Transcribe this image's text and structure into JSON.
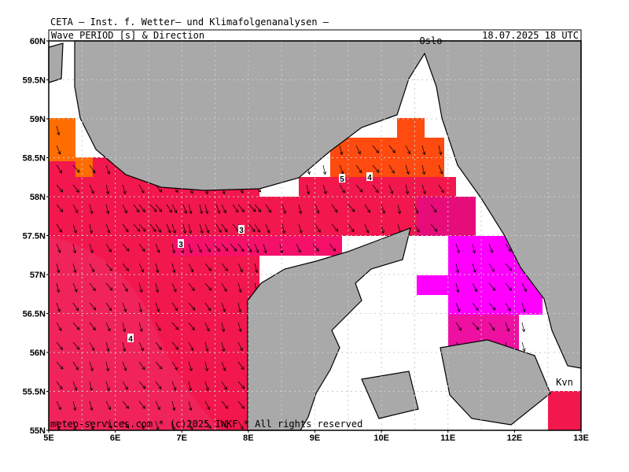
{
  "header": {
    "institute": "CETA – Inst. f. Wetter– und Klimafolgenanalysen –",
    "title": "Wave PERIOD [s] & Direction",
    "valid": "18.07.2025 18 UTC"
  },
  "map": {
    "lat_labels": [
      "60N",
      "59.5N",
      "59N",
      "58.5N",
      "58N",
      "57.5N",
      "57N",
      "56.5N",
      "56N",
      "55.5N",
      "55N"
    ],
    "lon_labels": [
      "5E",
      "6E",
      "7E",
      "8E",
      "9E",
      "10E",
      "11E",
      "12E",
      "13E"
    ],
    "contour_labels": [
      "5",
      "4",
      "3",
      "3",
      "4"
    ],
    "places": [
      "Oslo",
      "Kvn"
    ],
    "credit": "meteo-services.com * (c)2025 IWKF * All rights reserved"
  }
}
